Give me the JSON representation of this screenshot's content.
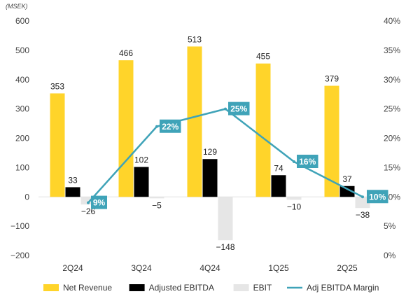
{
  "chart_data": {
    "type": "bar",
    "unit_label": "(MSEK)",
    "categories": [
      "2Q24",
      "3Q24",
      "4Q24",
      "1Q25",
      "2Q25"
    ],
    "series": [
      {
        "name": "Net Revenue",
        "kind": "bar",
        "axis": "left",
        "color": "#FFD42A",
        "values": [
          353,
          466,
          513,
          455,
          379
        ]
      },
      {
        "name": "Adjusted EBITDA",
        "kind": "bar",
        "axis": "left",
        "color": "#000000",
        "values": [
          33,
          102,
          129,
          74,
          37
        ]
      },
      {
        "name": "EBIT",
        "kind": "bar",
        "axis": "left",
        "color": "#E6E6E6",
        "values": [
          -26,
          -5,
          -148,
          -10,
          -38
        ]
      },
      {
        "name": "Adj EBITDA Margin",
        "kind": "line",
        "axis": "right",
        "color": "#3FA3B8",
        "values": [
          9,
          22,
          25,
          16,
          10
        ],
        "labels": [
          "9%",
          "22%",
          "25%",
          "16%",
          "10%"
        ]
      }
    ],
    "y_left": {
      "min": -200,
      "max": 600,
      "ticks": [
        600,
        500,
        400,
        300,
        200,
        100,
        0,
        -100,
        -200
      ],
      "tick_labels": [
        "600",
        "500",
        "400",
        "300",
        "200",
        "100",
        "0",
        "−100",
        "−200"
      ]
    },
    "y_right": {
      "min": 0,
      "max": 40,
      "ticks": [
        40,
        35,
        30,
        25,
        20,
        15,
        10,
        5,
        0
      ],
      "tick_labels": [
        "40%",
        "35%",
        "30%",
        "25%",
        "20%",
        "15%",
        "10%",
        "5%",
        "0%"
      ]
    },
    "bar_labels": {
      "Net Revenue": [
        "353",
        "466",
        "513",
        "455",
        "379"
      ],
      "Adjusted EBITDA": [
        "33",
        "102",
        "129",
        "74",
        "37"
      ],
      "EBIT": [
        "−26",
        "−5",
        "−148",
        "−10",
        "−38"
      ]
    },
    "grid": false,
    "legend_position": "bottom"
  }
}
